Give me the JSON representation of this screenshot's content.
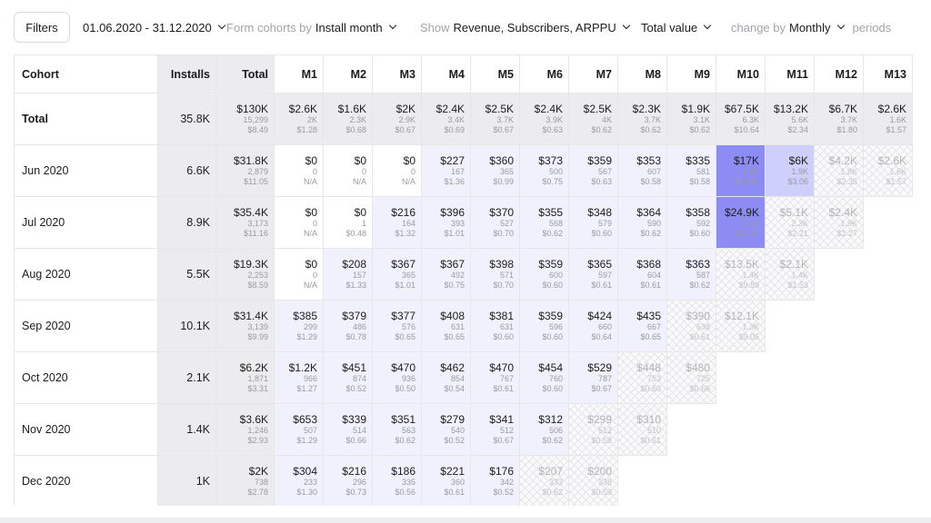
{
  "toolbar": {
    "filters_label": "Filters",
    "date_range": "01.06.2020 - 31.12.2020",
    "form_cohorts_label": "Form cohorts by",
    "form_cohorts_value": "Install month",
    "show_label": "Show",
    "show_value": "Revenue, Subscribers, ARPPU",
    "value_mode": "Total value",
    "change_by_label": "change by",
    "change_by_value": "Monthly",
    "periods_label": "periods"
  },
  "table": {
    "headers": [
      "Cohort",
      "Installs",
      "Total",
      "M1",
      "M2",
      "M3",
      "M4",
      "M5",
      "M6",
      "M7",
      "M8",
      "M9",
      "M10",
      "M11",
      "M12",
      "M13"
    ],
    "rows": [
      {
        "cohort": "Total",
        "installs": "35.8K",
        "total": [
          "$130K",
          "15,299",
          "$8.49"
        ],
        "cells": [
          [
            "$2.6K",
            "2K",
            "$1.28"
          ],
          [
            "$1.6K",
            "2.3K",
            "$0.68"
          ],
          [
            "$2K",
            "2.9K",
            "$0.67"
          ],
          [
            "$2.4K",
            "3.4K",
            "$0.69"
          ],
          [
            "$2.5K",
            "3.7K",
            "$0.67"
          ],
          [
            "$2.4K",
            "3.9K",
            "$0.63"
          ],
          [
            "$2.5K",
            "4K",
            "$0.62"
          ],
          [
            "$2.3K",
            "3.7K",
            "$0.62"
          ],
          [
            "$1.9K",
            "3.1K",
            "$0.62"
          ],
          [
            "$67.5K",
            "6.3K",
            "$10.64"
          ],
          [
            "$13.2K",
            "5.6K",
            "$2.34"
          ],
          [
            "$6.7K",
            "3.7K",
            "$1.80"
          ],
          [
            "$2.6K",
            "1.6K",
            "$1.57"
          ]
        ]
      },
      {
        "cohort": "Jun 2020",
        "installs": "6.6K",
        "total": [
          "$31.8K",
          "2,879",
          "$11.05"
        ],
        "cells": [
          [
            "$0",
            "0",
            "N/A"
          ],
          [
            "$0",
            "0",
            "N/A"
          ],
          [
            "$0",
            "0",
            "N/A"
          ],
          [
            "$227",
            "167",
            "$1.36"
          ],
          [
            "$360",
            "365",
            "$0.99"
          ],
          [
            "$373",
            "500",
            "$0.75"
          ],
          [
            "$359",
            "567",
            "$0.63"
          ],
          [
            "$353",
            "607",
            "$0.58"
          ],
          [
            "$335",
            "581",
            "$0.58"
          ],
          [
            "$17K",
            "1.6K",
            "$10.88"
          ],
          [
            "$6K",
            "1.9K",
            "$3.06"
          ],
          [
            "$4.2K",
            "1.8K",
            "$2.35"
          ],
          [
            "$2.6K",
            "1.6K",
            "$1.57"
          ]
        ]
      },
      {
        "cohort": "Jul 2020",
        "installs": "8.9K",
        "total": [
          "$35.4K",
          "3,173",
          "$11.16"
        ],
        "cells": [
          [
            "$0",
            "0",
            "N/A"
          ],
          [
            "$0",
            "1",
            "$0.48"
          ],
          [
            "$216",
            "164",
            "$1.32"
          ],
          [
            "$396",
            "393",
            "$1.01"
          ],
          [
            "$370",
            "527",
            "$0.70"
          ],
          [
            "$355",
            "568",
            "$0.62"
          ],
          [
            "$348",
            "579",
            "$0.60"
          ],
          [
            "$364",
            "590",
            "$0.62"
          ],
          [
            "$358",
            "592",
            "$0.60"
          ],
          [
            "$24.9K",
            "2.1K",
            "$11.97"
          ],
          [
            "$5.1K",
            "2.3K",
            "$2.21"
          ],
          [
            "$2.4K",
            "1.9K",
            "$1.27"
          ]
        ]
      },
      {
        "cohort": "Aug 2020",
        "installs": "5.5K",
        "total": [
          "$19.3K",
          "2,253",
          "$8.59"
        ],
        "cells": [
          [
            "$0",
            "0",
            "N/A"
          ],
          [
            "$208",
            "157",
            "$1.33"
          ],
          [
            "$367",
            "365",
            "$1.01"
          ],
          [
            "$367",
            "492",
            "$0.75"
          ],
          [
            "$398",
            "571",
            "$0.70"
          ],
          [
            "$359",
            "600",
            "$0.60"
          ],
          [
            "$365",
            "597",
            "$0.61"
          ],
          [
            "$368",
            "604",
            "$0.61"
          ],
          [
            "$363",
            "587",
            "$0.62"
          ],
          [
            "$13.5K",
            "1.4K",
            "$9.89"
          ],
          [
            "$2.1K",
            "1.4K",
            "$1.53"
          ]
        ]
      },
      {
        "cohort": "Sep 2020",
        "installs": "10.1K",
        "total": [
          "$31.4K",
          "3,139",
          "$9.99"
        ],
        "cells": [
          [
            "$385",
            "299",
            "$1.29"
          ],
          [
            "$379",
            "486",
            "$0.78"
          ],
          [
            "$377",
            "576",
            "$0.65"
          ],
          [
            "$408",
            "631",
            "$0.65"
          ],
          [
            "$381",
            "631",
            "$0.60"
          ],
          [
            "$359",
            "596",
            "$0.60"
          ],
          [
            "$424",
            "660",
            "$0.64"
          ],
          [
            "$435",
            "667",
            "$0.65"
          ],
          [
            "$390",
            "638",
            "$0.61"
          ],
          [
            "$12.1K",
            "1.3K",
            "$9.05"
          ]
        ]
      },
      {
        "cohort": "Oct 2020",
        "installs": "2.1K",
        "total": [
          "$6.2K",
          "1,871",
          "$3.31"
        ],
        "cells": [
          [
            "$1.2K",
            "966",
            "$1.27"
          ],
          [
            "$451",
            "874",
            "$0.52"
          ],
          [
            "$470",
            "936",
            "$0.50"
          ],
          [
            "$462",
            "854",
            "$0.54"
          ],
          [
            "$470",
            "767",
            "$0.61"
          ],
          [
            "$454",
            "760",
            "$0.60"
          ],
          [
            "$529",
            "787",
            "$0.67"
          ],
          [
            "$448",
            "753",
            "$0.60"
          ],
          [
            "$480",
            "725",
            "$0.66"
          ]
        ]
      },
      {
        "cohort": "Nov 2020",
        "installs": "1.4K",
        "total": [
          "$3.6K",
          "1,246",
          "$2.93"
        ],
        "cells": [
          [
            "$653",
            "507",
            "$1.29"
          ],
          [
            "$339",
            "514",
            "$0.66"
          ],
          [
            "$351",
            "563",
            "$0.62"
          ],
          [
            "$279",
            "540",
            "$0.52"
          ],
          [
            "$341",
            "512",
            "$0.67"
          ],
          [
            "$312",
            "506",
            "$0.62"
          ],
          [
            "$299",
            "512",
            "$0.58"
          ],
          [
            "$310",
            "510",
            "$0.61"
          ]
        ]
      },
      {
        "cohort": "Dec 2020",
        "installs": "1K",
        "total": [
          "$2K",
          "738",
          "$2.78"
        ],
        "cells": [
          [
            "$304",
            "233",
            "$1.30"
          ],
          [
            "$216",
            "296",
            "$0.73"
          ],
          [
            "$186",
            "335",
            "$0.56"
          ],
          [
            "$221",
            "360",
            "$0.61"
          ],
          [
            "$176",
            "342",
            "$0.52"
          ],
          [
            "$207",
            "333",
            "$0.62"
          ],
          [
            "$200",
            "338",
            "$0.59"
          ]
        ]
      }
    ],
    "incomplete_from_month": [
      null,
      12,
      11,
      10,
      9,
      8,
      7,
      6
    ],
    "colors": {
      "header_gray": "#ececee",
      "highlight_strong": "#8d8cf5",
      "highlight_mid": "#cfcffb",
      "highlight_light": "#f1f1fd",
      "border": "#e7e7ea"
    }
  }
}
